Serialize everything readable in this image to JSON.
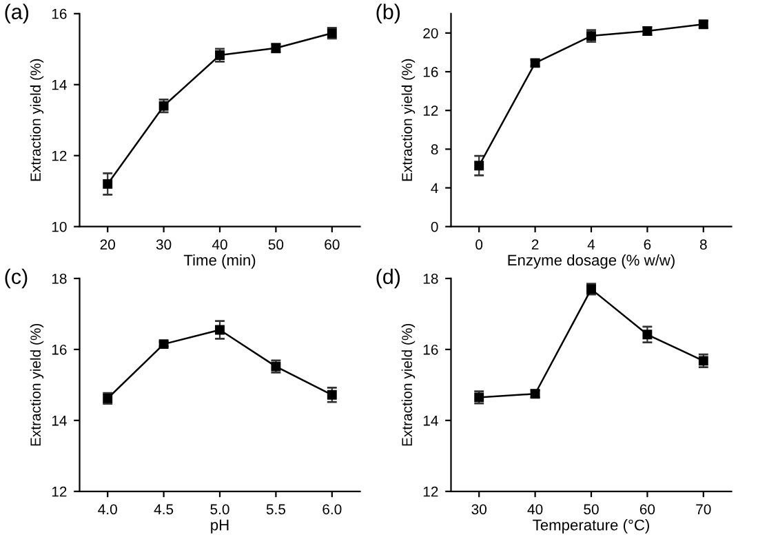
{
  "chart_data": [
    {
      "type": "line",
      "title": "(a)",
      "xlabel": "Time (min)",
      "ylabel": "Extraction yield (%)",
      "x": [
        20,
        30,
        40,
        50,
        60
      ],
      "xlim": [
        15,
        65
      ],
      "xticks": [
        20,
        30,
        40,
        50,
        60
      ],
      "ylim": [
        10,
        16
      ],
      "yticks": [
        10,
        12,
        14,
        16
      ],
      "marker": "square",
      "line_style": "solid",
      "grid": false,
      "legend": false,
      "series": [
        {
          "color": "#000000",
          "values": [
            11.2,
            13.4,
            14.83,
            15.03,
            15.45
          ],
          "errors": [
            0.3,
            0.18,
            0.18,
            0.12,
            0.15
          ]
        }
      ]
    },
    {
      "type": "line",
      "title": "(b)",
      "xlabel": "Enzyme dosage (% w/w)",
      "ylabel": "Extraction yield (%)",
      "x": [
        0,
        2,
        4,
        6,
        8
      ],
      "xlim": [
        -1,
        9
      ],
      "xticks": [
        0,
        2,
        4,
        6,
        8
      ],
      "ylim": [
        0,
        22
      ],
      "yticks": [
        0,
        4,
        8,
        12,
        16,
        20
      ],
      "marker": "square",
      "line_style": "solid",
      "grid": false,
      "legend": false,
      "series": [
        {
          "color": "#000000",
          "values": [
            6.3,
            16.9,
            19.7,
            20.2,
            20.9
          ],
          "errors": [
            1.0,
            0.35,
            0.6,
            0.4,
            0.35
          ]
        }
      ]
    },
    {
      "type": "line",
      "title": "(c)",
      "xlabel": "pH",
      "ylabel": "Extraction yield (%)",
      "x": [
        4.0,
        4.5,
        5.0,
        5.5,
        6.0
      ],
      "xlim": [
        3.75,
        6.25
      ],
      "xticks": [
        {
          "value": 4.0,
          "label": "4.0"
        },
        {
          "value": 4.5,
          "label": "4.5"
        },
        {
          "value": 5.0,
          "label": "5.0"
        },
        {
          "value": 5.5,
          "label": "5.5"
        },
        {
          "value": 6.0,
          "label": "6.0"
        }
      ],
      "ylim": [
        12,
        18
      ],
      "yticks": [
        12,
        14,
        16,
        18
      ],
      "marker": "square",
      "line_style": "solid",
      "grid": false,
      "legend": false,
      "series": [
        {
          "color": "#000000",
          "values": [
            14.62,
            16.15,
            16.55,
            15.52,
            14.72
          ],
          "errors": [
            0.15,
            0.07,
            0.25,
            0.17,
            0.2
          ]
        }
      ]
    },
    {
      "type": "line",
      "title": "(d)",
      "xlabel": "Temperature (°C)",
      "ylabel": "Extraction yield (%)",
      "x": [
        30,
        40,
        50,
        60,
        70
      ],
      "xlim": [
        25,
        75
      ],
      "xticks": [
        30,
        40,
        50,
        60,
        70
      ],
      "ylim": [
        12,
        18
      ],
      "yticks": [
        12,
        14,
        16,
        18
      ],
      "marker": "square",
      "line_style": "solid",
      "grid": false,
      "legend": false,
      "series": [
        {
          "color": "#000000",
          "values": [
            14.65,
            14.75,
            17.7,
            16.42,
            15.68
          ],
          "errors": [
            0.17,
            0.1,
            0.15,
            0.22,
            0.18
          ]
        }
      ]
    }
  ]
}
